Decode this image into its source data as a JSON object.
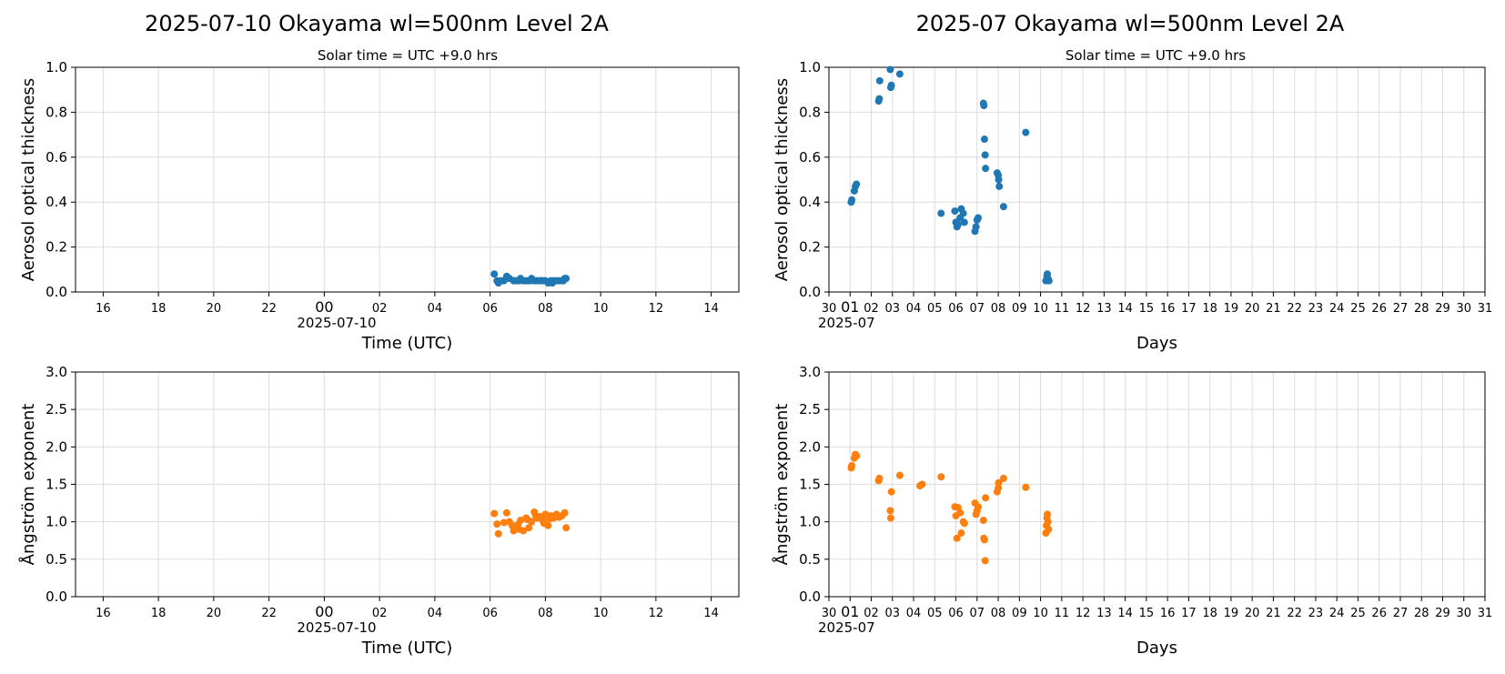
{
  "titles": {
    "left": "2025-07-10  Okayama  wl=500nm  Level 2A",
    "right": "2025-07  Okayama  wl=500nm  Level 2A"
  },
  "subtitles": {
    "left": "Solar time = UTC +9.0 hrs",
    "right": "Solar time = UTC +9.0 hrs"
  },
  "colors": {
    "aot": "#1f77b4",
    "angstrom": "#ff7f0e",
    "grid": "#dcdcdc"
  },
  "chart_data": [
    {
      "type": "scatter",
      "ylabel": "Aerosol optical thickness",
      "xlabel": "Time (UTC)",
      "x_sublabel": "2025-07-10",
      "xlim": [
        15,
        39
      ],
      "ylim": [
        0,
        1
      ],
      "grid": true,
      "xticks": [
        {
          "v": 16,
          "label": "16"
        },
        {
          "v": 18,
          "label": "18"
        },
        {
          "v": 20,
          "label": "20"
        },
        {
          "v": 22,
          "label": "22"
        },
        {
          "v": 24,
          "label": "00"
        },
        {
          "v": 26,
          "label": "02"
        },
        {
          "v": 28,
          "label": "04"
        },
        {
          "v": 30,
          "label": "06"
        },
        {
          "v": 32,
          "label": "08"
        },
        {
          "v": 34,
          "label": "10"
        },
        {
          "v": 36,
          "label": "12"
        },
        {
          "v": 38,
          "label": "14"
        }
      ],
      "yticks": [
        "0.0",
        "0.2",
        "0.4",
        "0.6",
        "0.8",
        "1.0"
      ],
      "ytick_values": [
        0,
        0.2,
        0.4,
        0.6,
        0.8,
        1.0
      ],
      "series": [
        {
          "x": [
            30.15,
            30.3,
            30.5,
            30.7,
            30.85,
            31.0,
            31.2,
            31.4,
            31.6,
            31.8,
            32.0,
            32.2,
            32.4,
            32.6,
            32.75,
            30.25,
            30.6,
            30.9,
            31.1,
            31.3,
            31.5,
            31.7,
            31.9,
            32.1,
            32.3,
            32.5,
            32.7,
            30.4,
            31.05,
            31.45,
            31.85,
            32.25,
            32.65
          ],
          "y": [
            0.08,
            0.04,
            0.05,
            0.06,
            0.05,
            0.05,
            0.05,
            0.05,
            0.05,
            0.05,
            0.05,
            0.05,
            0.05,
            0.05,
            0.06,
            0.05,
            0.07,
            0.05,
            0.06,
            0.05,
            0.06,
            0.05,
            0.05,
            0.04,
            0.05,
            0.05,
            0.06,
            0.05,
            0.05,
            0.05,
            0.05,
            0.04,
            0.05
          ]
        }
      ]
    },
    {
      "type": "scatter",
      "ylabel": "Aerosol optical thickness",
      "xlabel": "Days",
      "x_sublabel": "2025-07",
      "xlim": [
        0,
        31
      ],
      "ylim": [
        0,
        1
      ],
      "grid": true,
      "xticks": [
        {
          "v": 0,
          "label": "30"
        },
        {
          "v": 1,
          "label": "01"
        },
        {
          "v": 2,
          "label": "02"
        },
        {
          "v": 3,
          "label": "03"
        },
        {
          "v": 4,
          "label": "04"
        },
        {
          "v": 5,
          "label": "05"
        },
        {
          "v": 6,
          "label": "06"
        },
        {
          "v": 7,
          "label": "07"
        },
        {
          "v": 8,
          "label": "08"
        },
        {
          "v": 9,
          "label": "09"
        },
        {
          "v": 10,
          "label": "10"
        },
        {
          "v": 11,
          "label": "11"
        },
        {
          "v": 12,
          "label": "12"
        },
        {
          "v": 13,
          "label": "13"
        },
        {
          "v": 14,
          "label": "14"
        },
        {
          "v": 15,
          "label": "15"
        },
        {
          "v": 16,
          "label": "16"
        },
        {
          "v": 17,
          "label": "17"
        },
        {
          "v": 18,
          "label": "18"
        },
        {
          "v": 19,
          "label": "19"
        },
        {
          "v": 20,
          "label": "20"
        },
        {
          "v": 21,
          "label": "21"
        },
        {
          "v": 22,
          "label": "22"
        },
        {
          "v": 23,
          "label": "23"
        },
        {
          "v": 24,
          "label": "24"
        },
        {
          "v": 25,
          "label": "25"
        },
        {
          "v": 26,
          "label": "26"
        },
        {
          "v": 27,
          "label": "27"
        },
        {
          "v": 28,
          "label": "28"
        },
        {
          "v": 29,
          "label": "29"
        },
        {
          "v": 30,
          "label": "30"
        },
        {
          "v": 31,
          "label": "31"
        }
      ],
      "yticks": [
        "0.0",
        "0.2",
        "0.4",
        "0.6",
        "0.8",
        "1.0"
      ],
      "ytick_values": [
        0,
        0.2,
        0.4,
        0.6,
        0.8,
        1.0
      ],
      "series": [
        {
          "x": [
            1.05,
            1.08,
            1.2,
            1.25,
            1.3,
            2.35,
            2.38,
            2.4,
            2.9,
            2.92,
            2.95,
            3.35,
            5.3,
            5.95,
            6.0,
            6.05,
            6.1,
            6.2,
            6.25,
            6.35,
            6.4,
            6.9,
            6.95,
            7.0,
            7.05,
            7.3,
            7.32,
            7.35,
            7.38,
            7.4,
            7.95,
            8.0,
            8.02,
            8.05,
            8.25,
            9.3,
            10.25,
            10.3,
            10.32,
            10.35,
            10.4
          ],
          "y": [
            0.4,
            0.41,
            0.45,
            0.47,
            0.48,
            0.85,
            0.86,
            0.94,
            0.99,
            0.91,
            0.92,
            0.97,
            0.35,
            0.36,
            0.31,
            0.29,
            0.3,
            0.33,
            0.37,
            0.35,
            0.31,
            0.27,
            0.29,
            0.32,
            0.33,
            0.84,
            0.83,
            0.68,
            0.61,
            0.55,
            0.53,
            0.52,
            0.5,
            0.47,
            0.38,
            0.71,
            0.05,
            0.07,
            0.08,
            0.06,
            0.05
          ]
        }
      ]
    },
    {
      "type": "scatter",
      "ylabel": "Ångström exponent",
      "xlabel": "Time (UTC)",
      "x_sublabel": "2025-07-10",
      "xlim": [
        15,
        39
      ],
      "ylim": [
        0,
        3
      ],
      "grid": true,
      "xticks": [
        {
          "v": 16,
          "label": "16"
        },
        {
          "v": 18,
          "label": "18"
        },
        {
          "v": 20,
          "label": "20"
        },
        {
          "v": 22,
          "label": "22"
        },
        {
          "v": 24,
          "label": "00"
        },
        {
          "v": 26,
          "label": "02"
        },
        {
          "v": 28,
          "label": "04"
        },
        {
          "v": 30,
          "label": "06"
        },
        {
          "v": 32,
          "label": "08"
        },
        {
          "v": 34,
          "label": "10"
        },
        {
          "v": 36,
          "label": "12"
        },
        {
          "v": 38,
          "label": "14"
        }
      ],
      "yticks": [
        "0.0",
        "0.5",
        "1.0",
        "1.5",
        "2.0",
        "2.5",
        "3.0"
      ],
      "ytick_values": [
        0,
        0.5,
        1.0,
        1.5,
        2.0,
        2.5,
        3.0
      ],
      "series": [
        {
          "x": [
            30.15,
            30.25,
            30.3,
            30.5,
            30.6,
            30.7,
            30.85,
            30.9,
            31.0,
            31.1,
            31.2,
            31.3,
            31.4,
            31.5,
            31.6,
            31.7,
            31.8,
            31.9,
            32.0,
            32.1,
            32.2,
            32.3,
            32.4,
            32.5,
            32.6,
            32.7,
            32.75,
            30.8,
            31.05,
            31.35,
            31.65,
            31.95,
            32.15
          ],
          "y": [
            1.11,
            0.97,
            0.84,
            0.99,
            1.12,
            1.0,
            0.88,
            0.93,
            0.96,
            1.02,
            0.88,
            1.05,
            0.92,
            1.0,
            1.13,
            1.05,
            1.07,
            1.02,
            1.1,
            0.95,
            1.08,
            1.05,
            1.1,
            1.06,
            1.08,
            1.12,
            0.92,
            0.95,
            0.9,
            1.03,
            1.08,
            0.98,
            1.04
          ]
        }
      ]
    },
    {
      "type": "scatter",
      "ylabel": "Ångström exponent",
      "xlabel": "Days",
      "x_sublabel": "2025-07",
      "xlim": [
        0,
        31
      ],
      "ylim": [
        0,
        3
      ],
      "grid": true,
      "xticks": [
        {
          "v": 0,
          "label": "30"
        },
        {
          "v": 1,
          "label": "01"
        },
        {
          "v": 2,
          "label": "02"
        },
        {
          "v": 3,
          "label": "03"
        },
        {
          "v": 4,
          "label": "04"
        },
        {
          "v": 5,
          "label": "05"
        },
        {
          "v": 6,
          "label": "06"
        },
        {
          "v": 7,
          "label": "07"
        },
        {
          "v": 8,
          "label": "08"
        },
        {
          "v": 9,
          "label": "09"
        },
        {
          "v": 10,
          "label": "10"
        },
        {
          "v": 11,
          "label": "11"
        },
        {
          "v": 12,
          "label": "12"
        },
        {
          "v": 13,
          "label": "13"
        },
        {
          "v": 14,
          "label": "14"
        },
        {
          "v": 15,
          "label": "15"
        },
        {
          "v": 16,
          "label": "16"
        },
        {
          "v": 17,
          "label": "17"
        },
        {
          "v": 18,
          "label": "18"
        },
        {
          "v": 19,
          "label": "19"
        },
        {
          "v": 20,
          "label": "20"
        },
        {
          "v": 21,
          "label": "21"
        },
        {
          "v": 22,
          "label": "22"
        },
        {
          "v": 23,
          "label": "23"
        },
        {
          "v": 24,
          "label": "24"
        },
        {
          "v": 25,
          "label": "25"
        },
        {
          "v": 26,
          "label": "26"
        },
        {
          "v": 27,
          "label": "27"
        },
        {
          "v": 28,
          "label": "28"
        },
        {
          "v": 29,
          "label": "29"
        },
        {
          "v": 30,
          "label": "30"
        },
        {
          "v": 31,
          "label": "31"
        }
      ],
      "yticks": [
        "0.0",
        "0.5",
        "1.0",
        "1.5",
        "2.0",
        "2.5",
        "3.0"
      ],
      "ytick_values": [
        0,
        0.5,
        1.0,
        1.5,
        2.0,
        2.5,
        3.0
      ],
      "series": [
        {
          "x": [
            1.05,
            1.08,
            1.2,
            1.25,
            1.3,
            2.35,
            2.38,
            2.9,
            2.92,
            2.95,
            3.35,
            4.3,
            4.4,
            5.3,
            5.95,
            6.0,
            6.05,
            6.1,
            6.2,
            6.25,
            6.35,
            6.4,
            6.9,
            6.95,
            7.0,
            7.05,
            7.3,
            7.32,
            7.35,
            7.38,
            7.4,
            7.95,
            8.0,
            8.02,
            8.25,
            9.3,
            10.25,
            10.28,
            10.3,
            10.32,
            10.35,
            10.38
          ],
          "y": [
            1.72,
            1.75,
            1.85,
            1.9,
            1.88,
            1.55,
            1.58,
            1.15,
            1.05,
            1.4,
            1.62,
            1.48,
            1.5,
            1.6,
            1.2,
            1.08,
            0.78,
            1.19,
            1.12,
            0.85,
            1.0,
            0.98,
            1.25,
            1.1,
            1.15,
            1.2,
            1.02,
            0.78,
            0.76,
            0.48,
            1.32,
            1.4,
            1.45,
            1.52,
            1.58,
            1.46,
            0.85,
            0.95,
            1.05,
            1.1,
            1.0,
            0.9
          ]
        }
      ]
    }
  ]
}
